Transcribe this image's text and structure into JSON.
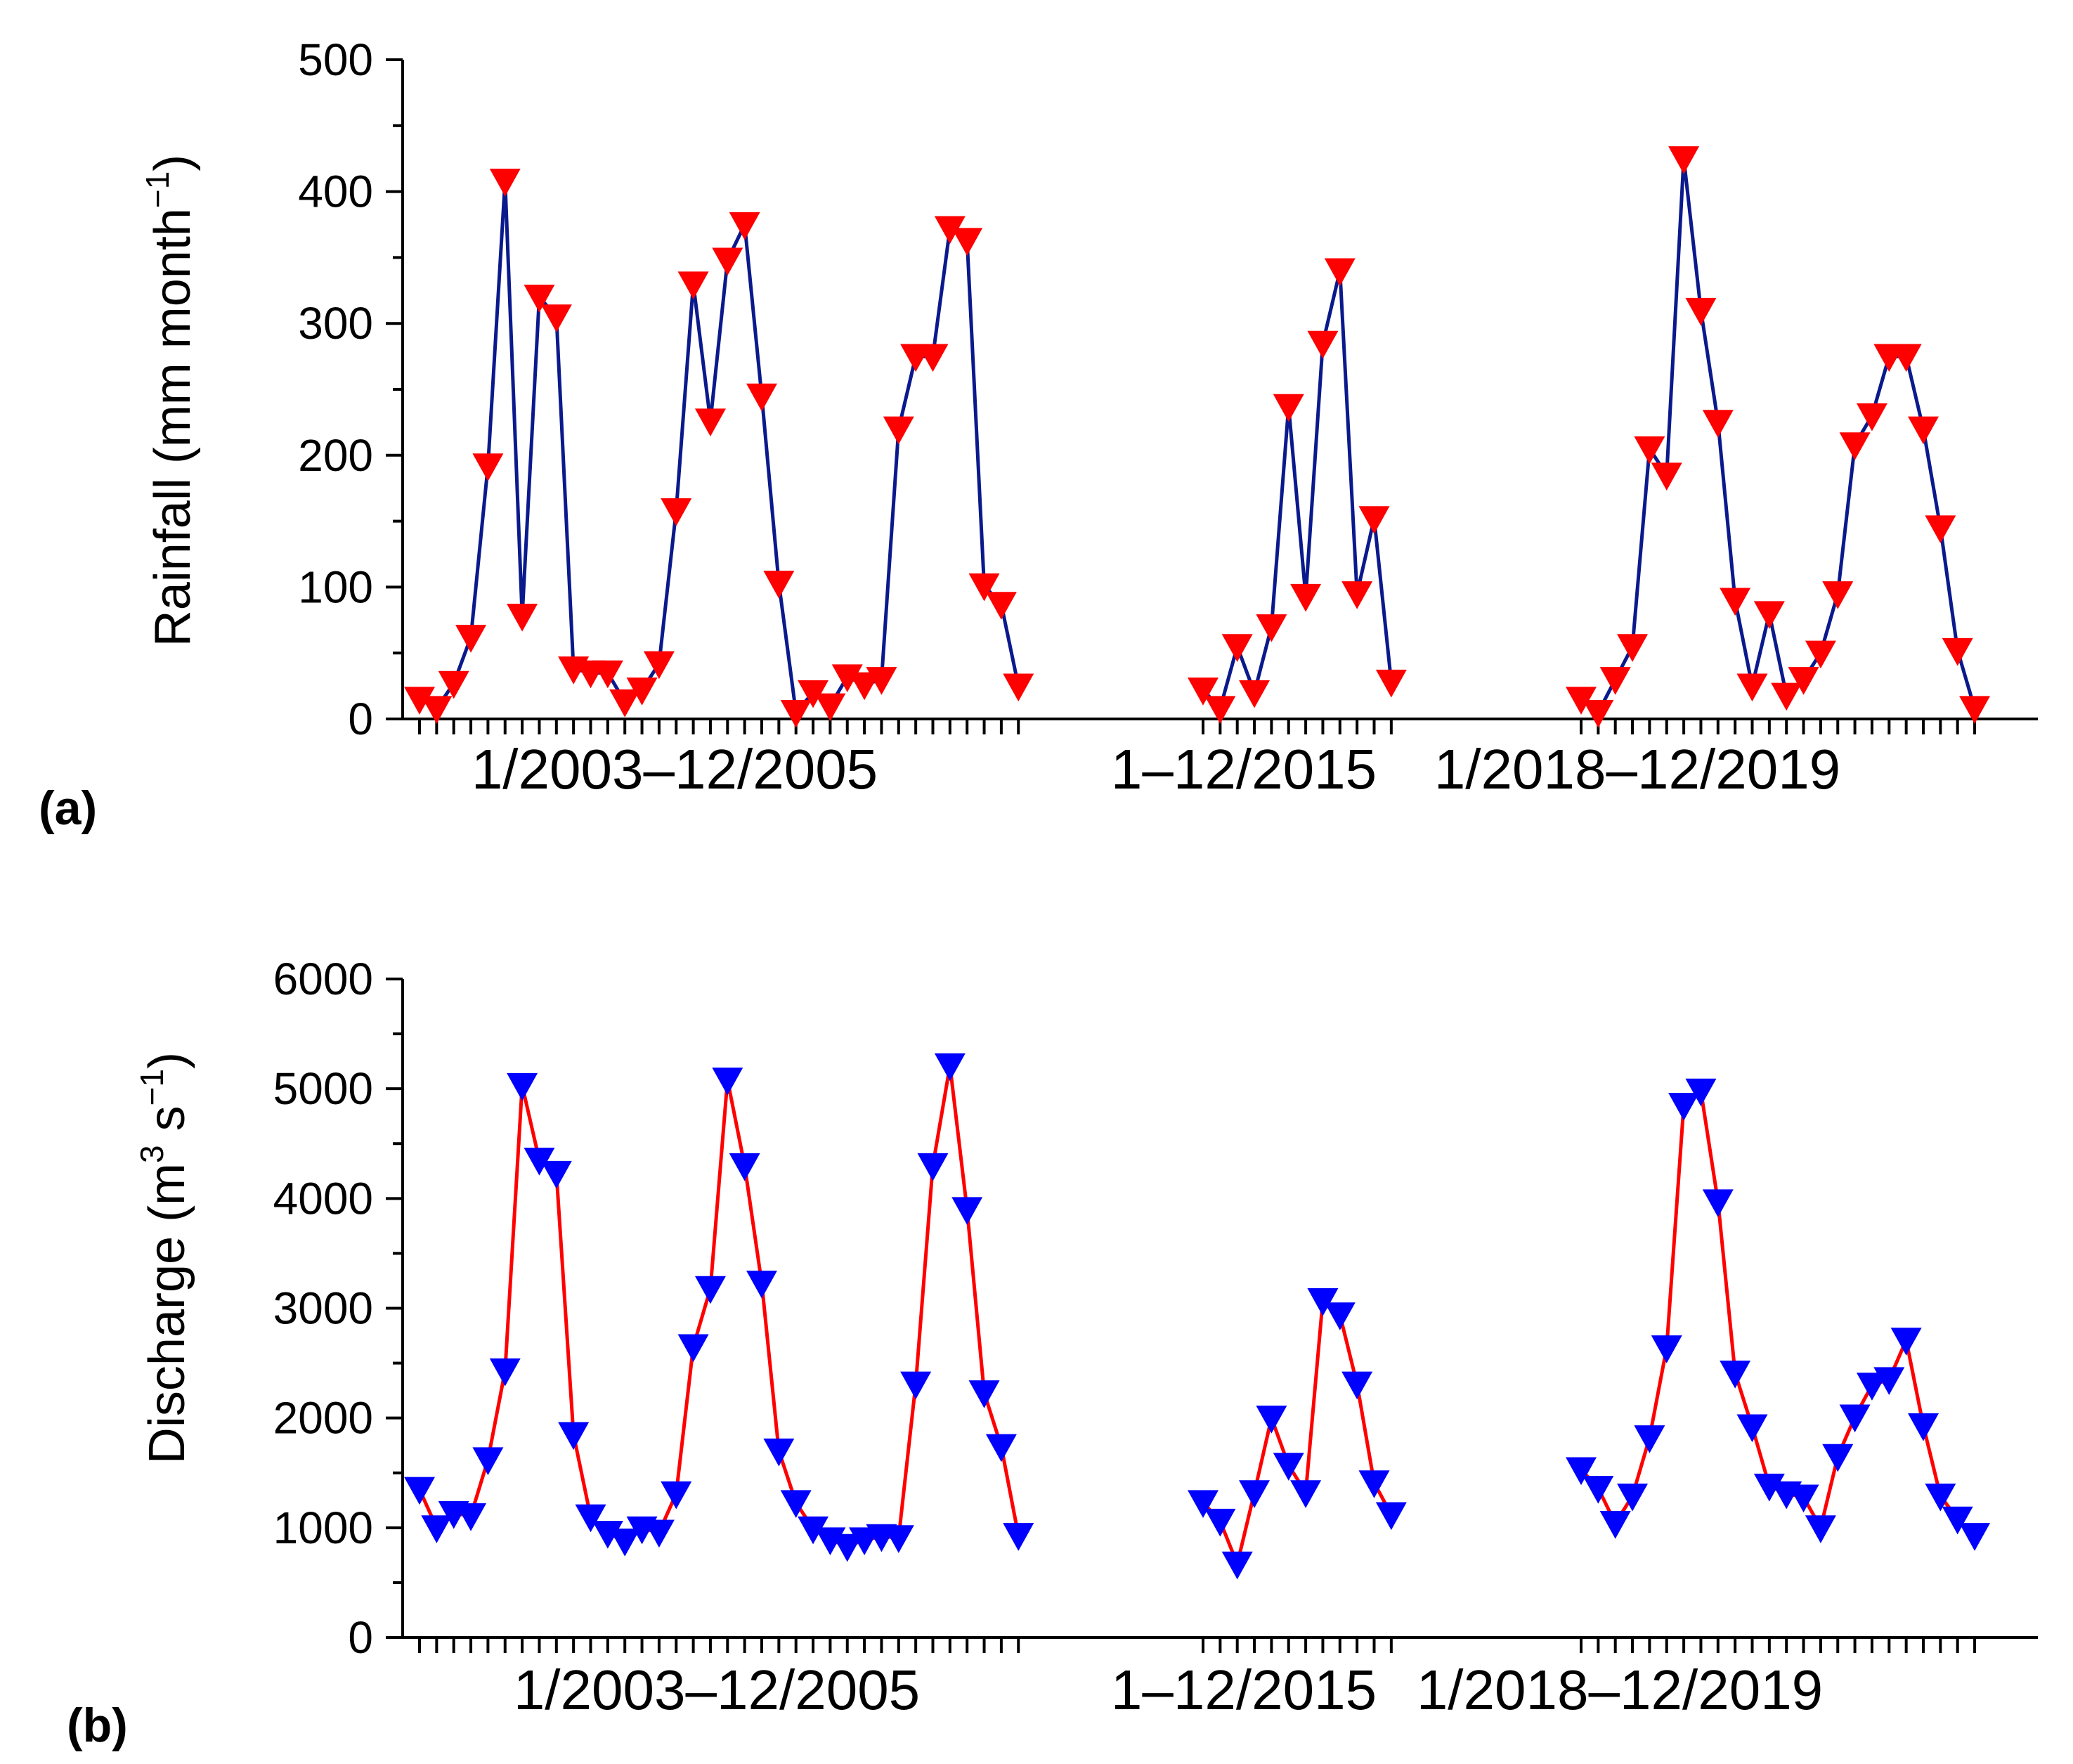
{
  "chart_data": [
    {
      "type": "line",
      "panel_label": "(a)",
      "title": "",
      "ylabel": "Rainfall (mm month",
      "ylabel_sup": "−1",
      "ylabel_close": ")",
      "ylim": [
        0,
        500
      ],
      "yticks": [
        "0",
        "100",
        "200",
        "300",
        "400",
        "500"
      ],
      "line_color": "#0a1a8c",
      "marker_color": "#ff0000",
      "marker": "down-triangle",
      "groups": [
        {
          "label": "1/2003–12/2005",
          "start": "1/2003",
          "end": "12/2005",
          "values": [
            15,
            8,
            27,
            62,
            192,
            408,
            78,
            320,
            305,
            38,
            35,
            35,
            13,
            22,
            42,
            158,
            330,
            226,
            348,
            375,
            245,
            103,
            5,
            20,
            10,
            32,
            26,
            30,
            220,
            275,
            275,
            372,
            363,
            101,
            87,
            25
          ]
        },
        {
          "label": "1–12/2015",
          "start": "1/2015",
          "end": "12/2015",
          "values": [
            22,
            8,
            55,
            20,
            70,
            237,
            93,
            285,
            340,
            95,
            152,
            28
          ]
        },
        {
          "label": "1/2018–12/2019",
          "start": "1/2018",
          "end": "12/2019",
          "values": [
            15,
            5,
            30,
            55,
            205,
            185,
            425,
            310,
            225,
            90,
            25,
            80,
            18,
            30,
            50,
            95,
            208,
            230,
            275,
            275,
            220,
            145,
            52,
            8
          ]
        }
      ]
    },
    {
      "type": "line",
      "panel_label": "(b)",
      "title": "",
      "ylabel": "Discharge (m",
      "ylabel_sup1": "3",
      "ylabel_mid": " s",
      "ylabel_sup2": "−1",
      "ylabel_close": ")",
      "ylim": [
        0,
        6000
      ],
      "yticks": [
        "0",
        "1000",
        "2000",
        "3000",
        "4000",
        "5000",
        "6000"
      ],
      "line_color": "#ff0000",
      "marker_color": "#0000ff",
      "marker": "down-triangle",
      "groups": [
        {
          "label": "1/2003–12/2005",
          "start": "1/2003",
          "end": "12/2005",
          "values": [
            1350,
            1000,
            1130,
            1110,
            1620,
            2430,
            5030,
            4350,
            4230,
            1850,
            1100,
            950,
            880,
            990,
            960,
            1310,
            2650,
            3180,
            5080,
            4300,
            3230,
            1700,
            1230,
            990,
            890,
            830,
            890,
            920,
            910,
            2310,
            4300,
            5210,
            3900,
            2230,
            1740,
            930
          ]
        },
        {
          "label": "1–12/2015",
          "start": "1/2015",
          "end": "12/2015",
          "values": [
            1230,
            1060,
            670,
            1320,
            2000,
            1570,
            1320,
            3070,
            2940,
            2310,
            1410,
            1120
          ]
        },
        {
          "label": "1/2018–12/2019",
          "start": "1/2018",
          "end": "12/2019",
          "values": [
            1530,
            1360,
            1040,
            1290,
            1820,
            2640,
            4850,
            4980,
            3970,
            2410,
            1920,
            1380,
            1310,
            1280,
            1000,
            1650,
            2010,
            2300,
            2350,
            2710,
            1930,
            1290,
            1080,
            930
          ]
        }
      ]
    }
  ]
}
